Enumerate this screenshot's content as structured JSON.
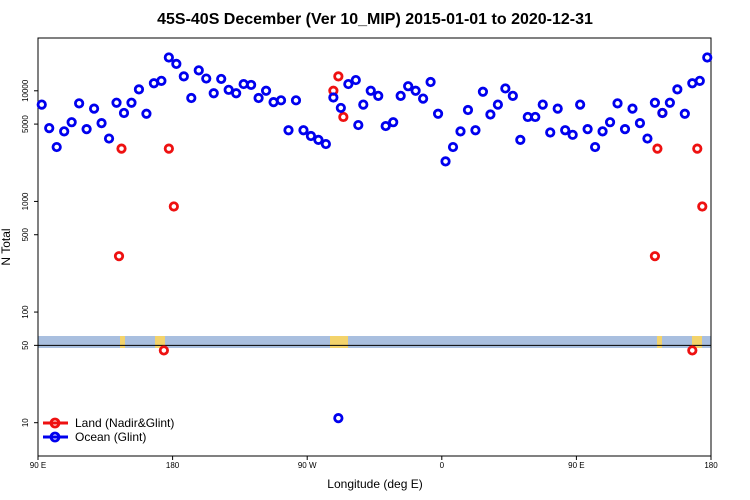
{
  "chart_data": {
    "type": "scatter",
    "title": "45S-40S December (Ver 10_MIP)   2015-01-01 to 2020-12-31",
    "xlabel": "Longitude (deg E)",
    "ylabel": "N Total",
    "xlim": [
      -90,
      180
    ],
    "ylim": [
      5,
      30000
    ],
    "yscale": "log",
    "x_ticks": [
      {
        "value": -90,
        "label": "90 E"
      },
      {
        "value": -36,
        "label": "180"
      },
      {
        "value": 18,
        "label": "90 W"
      },
      {
        "value": 72,
        "label": "0"
      },
      {
        "value": 126,
        "label": "90 E"
      },
      {
        "value": 180,
        "label": "180"
      }
    ],
    "y_ticks": [
      {
        "value": 10,
        "label": "10"
      },
      {
        "value": 50,
        "label": "50"
      },
      {
        "value": 100,
        "label": "100"
      },
      {
        "value": 500,
        "label": "500"
      },
      {
        "value": 1000,
        "label": "1000"
      },
      {
        "value": 5000,
        "label": "5000"
      },
      {
        "value": 10000,
        "label": "10000"
      }
    ],
    "reference_line_y": 50,
    "colors": {
      "land": "#ee1111",
      "ocean": "#0000ee",
      "map_ocean": "#a9bfdf",
      "map_land": "#f3d36b"
    },
    "legend": [
      {
        "name": "Land (Nadir&Glint)",
        "color": "#ee1111"
      },
      {
        "name": "Ocean (Glint)",
        "color": "#0000ee"
      }
    ],
    "series": [
      {
        "name": "Land (Nadir&Glint)",
        "color": "#ee1111",
        "x": [
          -57.5,
          -56.5,
          -39.5,
          -37.5,
          -35.5,
          28.5,
          30.5,
          32.5,
          157.5,
          158.5,
          160.5,
          172.5,
          174.5,
          176.5
        ],
        "y": [
          320,
          3000,
          45,
          3000,
          900,
          10000,
          13500,
          5800,
          320,
          3000,
          6300,
          45,
          3000,
          900
        ]
      },
      {
        "name": "Ocean (Glint)",
        "color": "#0000ee",
        "x": [
          -88.5,
          -85.5,
          -82.5,
          -79.5,
          -76.5,
          -73.5,
          -70.5,
          -67.5,
          -64.5,
          -61.5,
          -58.5,
          -55.5,
          -52.5,
          -49.5,
          -46.5,
          -43.5,
          -40.5,
          -37.5,
          -34.5,
          -31.5,
          -28.5,
          -25.5,
          -22.5,
          -19.5,
          -16.5,
          -13.5,
          -10.5,
          -7.5,
          -4.5,
          -1.5,
          1.5,
          4.5,
          7.5,
          10.5,
          13.5,
          16.5,
          19.5,
          22.5,
          25.5,
          28.5,
          31.5,
          34.5,
          37.5,
          40.5,
          43.5,
          46.5,
          49.5,
          52.5,
          55.5,
          58.5,
          61.5,
          64.5,
          67.5,
          70.5,
          73.5,
          76.5,
          79.5,
          82.5,
          85.5,
          88.5,
          91.5,
          94.5,
          97.5,
          100.5,
          103.5,
          106.5,
          109.5,
          112.5,
          115.5,
          118.5,
          121.5,
          124.5,
          127.5,
          130.5,
          133.5,
          136.5,
          139.5,
          142.5,
          145.5,
          148.5,
          151.5,
          154.5,
          157.5,
          160.5,
          163.5,
          166.5,
          169.5,
          172.5,
          175.5,
          178.5,
          30.5,
          38.5
        ],
        "y": [
          7500,
          4600,
          3100,
          4300,
          5200,
          7700,
          4500,
          6900,
          5100,
          3700,
          7800,
          6300,
          7800,
          10300,
          6200,
          11700,
          12300,
          20000,
          17500,
          13500,
          8600,
          15300,
          12900,
          9500,
          12800,
          10200,
          9500,
          11500,
          11300,
          8600,
          10000,
          7900,
          8200,
          4400,
          8200,
          4400,
          3900,
          3600,
          3300,
          8700,
          7000,
          11500,
          12500,
          7500,
          10000,
          9000,
          4800,
          5200,
          9000,
          11000,
          10000,
          8500,
          12000,
          6200,
          2300,
          3100,
          4300,
          6700,
          4400,
          9800,
          6100,
          7500,
          10500,
          9000,
          3600,
          5800,
          5800,
          7500,
          4200,
          6900,
          4400,
          4000,
          7500,
          4500,
          3100,
          4300,
          5200,
          7700,
          4500,
          6900,
          5100,
          3700,
          7800,
          6300,
          7800,
          10300,
          6200,
          11700,
          12300,
          20000,
          11,
          4900
        ]
      }
    ]
  }
}
